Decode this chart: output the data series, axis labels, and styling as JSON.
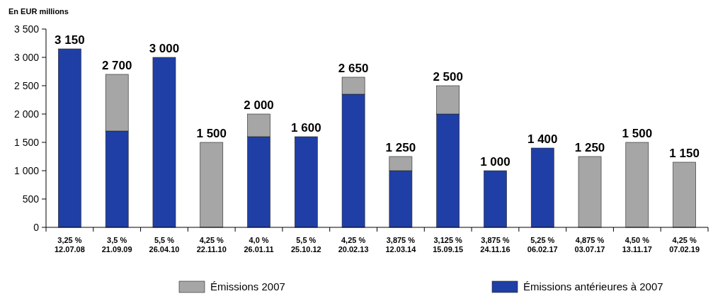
{
  "chart_data": {
    "type": "bar",
    "stacked": true,
    "ylabel": "En EUR millions",
    "categories": [
      "3,25 %\n12.07.08",
      "3,5 %\n21.09.09",
      "5,5 %\n26.04.10",
      "4,25 %\n22.11.10",
      "4,0 %\n26.01.11",
      "5,5 %\n25.10.12",
      "4,25 %\n20.02.13",
      "3,875 %\n12.03.14",
      "3,125 %\n15.09.15",
      "3,875 %\n24.11.16",
      "5,25 %\n06.02.17",
      "4,875 %\n03.07.17",
      "4,50 %\n13.11.17",
      "4,25 %\n07.02.19"
    ],
    "series": [
      {
        "name": "Émissions antérieures à 2007",
        "color": "#1f3fa6",
        "values": [
          3150,
          1700,
          3000,
          0,
          1600,
          1600,
          2350,
          1000,
          2000,
          1000,
          1400,
          0,
          0,
          0
        ]
      },
      {
        "name": "Émissions 2007",
        "color": "#a6a6a6",
        "values": [
          0,
          1000,
          0,
          1500,
          400,
          0,
          300,
          250,
          500,
          0,
          0,
          1250,
          1500,
          1150
        ]
      }
    ],
    "totals": [
      "3 150",
      "2 700",
      "3 000",
      "1 500",
      "2 000",
      "1 600",
      "2 650",
      "1 250",
      "2 500",
      "1 000",
      "1 400",
      "1 250",
      "1 500",
      "1 150"
    ],
    "ylim": [
      0,
      3500
    ],
    "yticks": [
      0,
      500,
      {
        "value": 1000,
        "label": "1 000"
      },
      {
        "value": 1500,
        "label": "1 500"
      },
      {
        "value": 2000,
        "label": "2 000"
      },
      {
        "value": 2500,
        "label": "2 500"
      },
      {
        "value": 3000,
        "label": "3 000"
      },
      {
        "value": 3500,
        "label": "3 500"
      }
    ],
    "legend": "bottom"
  }
}
